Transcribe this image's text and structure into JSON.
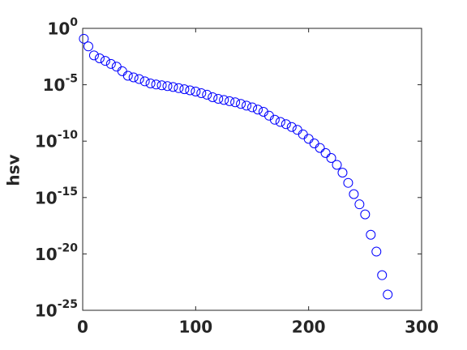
{
  "chart_data": {
    "type": "scatter",
    "ylabel": "hsv",
    "x": [
      1,
      5,
      10,
      15,
      20,
      25,
      30,
      35,
      40,
      45,
      50,
      55,
      60,
      65,
      70,
      75,
      80,
      85,
      90,
      95,
      100,
      105,
      110,
      115,
      120,
      125,
      130,
      135,
      140,
      145,
      150,
      155,
      160,
      165,
      170,
      175,
      180,
      185,
      190,
      195,
      200,
      205,
      210,
      215,
      220,
      225,
      230,
      235,
      240,
      245,
      250,
      255,
      260,
      265,
      270
    ],
    "values": [
      0.12,
      0.025,
      0.004,
      0.0022,
      0.0013,
      0.0007,
      0.0004,
      0.00016,
      6.3e-05,
      4.5e-05,
      3.2e-05,
      2e-05,
      1.3e-05,
      1.05e-05,
      8.9e-06,
      7.6e-06,
      6.3e-06,
      5e-06,
      4e-06,
      3.2e-06,
      2.5e-06,
      1.8e-06,
      1.3e-06,
      7.9e-07,
      5.6e-07,
      4.5e-07,
      3.5e-07,
      2.8e-07,
      2e-07,
      1.4e-07,
      1e-07,
      6.3e-08,
      4e-08,
      1.8e-08,
      7.9e-09,
      5e-09,
      3.2e-09,
      1.8e-09,
      1e-09,
      4e-10,
      1.6e-10,
      6.3e-11,
      2.5e-11,
      8.9e-12,
      3.2e-12,
      7.9e-13,
      1.6e-13,
      2e-14,
      2e-15,
      2.5e-16,
      3.2e-17,
      5e-19,
      1.6e-20,
      1.3e-22,
      2.5e-24
    ],
    "color": "#0000ff",
    "marker": "open-circle",
    "yscale": "log",
    "xlim": [
      0,
      300
    ],
    "xticks": [
      0,
      100,
      200,
      300
    ],
    "ylim": [
      1e-25,
      1
    ],
    "yticks": [
      {
        "value": 1e-25,
        "label": "10^-25"
      },
      {
        "value": 1e-20,
        "label": "10^-20"
      },
      {
        "value": 1e-15,
        "label": "10^-15"
      },
      {
        "value": 1e-10,
        "label": "10^-10"
      },
      {
        "value": 1e-05,
        "label": "10^-5"
      },
      {
        "value": 1,
        "label": "10^0"
      }
    ],
    "grid": false
  }
}
